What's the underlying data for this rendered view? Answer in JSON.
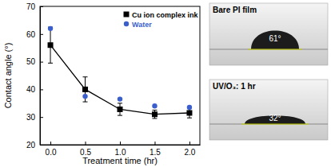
{
  "chart_data": {
    "type": "line",
    "x_label": "Treatment time (hr)",
    "y_label": "Contact angle (°)",
    "x": [
      0,
      0.5,
      1.0,
      1.5,
      2.0
    ],
    "xlim": [
      -0.15,
      2.15
    ],
    "xticks": [
      {
        "value": 0,
        "label": "0.0"
      },
      {
        "value": 0.5,
        "label": "0.5"
      },
      {
        "value": 1,
        "label": "1.0"
      },
      {
        "value": 1.5,
        "label": "1.5"
      },
      {
        "value": 2,
        "label": "2.0"
      }
    ],
    "ylim": [
      20,
      70
    ],
    "yticks": [
      20,
      30,
      40,
      50,
      60,
      70
    ],
    "legend": "upper right",
    "series": [
      {
        "name": "Cu ion complex ink",
        "type": "line",
        "marker": "square",
        "color": "#000000",
        "values": [
          56,
          40,
          32.8,
          31,
          31.5
        ],
        "errors": [
          6.5,
          4.5,
          2.2,
          1.5,
          1.8
        ]
      },
      {
        "name": "Water",
        "type": "scatter",
        "marker": "circle",
        "color": "#3a5fcd",
        "values": [
          62,
          37.5,
          36.5,
          34,
          33.5
        ]
      }
    ]
  },
  "insets": [
    {
      "title": "Bare PI film",
      "angle_label": "61°"
    },
    {
      "title": "UV/O₃: 1 hr",
      "angle_label": "32°"
    }
  ]
}
